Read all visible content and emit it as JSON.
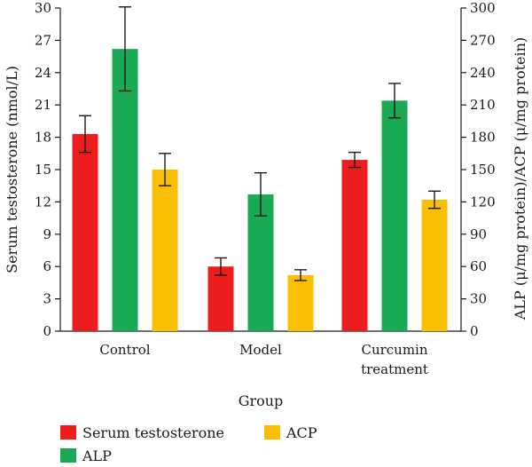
{
  "chart_data": {
    "type": "bar",
    "xlabel": "Group",
    "ylabel_left": "Serum testosterone (nmol/L)",
    "ylabel_right": "ALP (μ/mg protein)/ACP (μ/mg protein)",
    "categories": [
      [
        "Control"
      ],
      [
        "Model"
      ],
      [
        "Curcumin",
        "treatment"
      ]
    ],
    "y_left": {
      "min": 0,
      "max": 30,
      "ticks": [
        "0",
        "3",
        "6",
        "9",
        "12",
        "15",
        "18",
        "21",
        "24",
        "27",
        "30"
      ]
    },
    "y_right": {
      "min": 0,
      "max": 300,
      "ticks": [
        "0",
        "30",
        "60",
        "90",
        "120",
        "150",
        "180",
        "210",
        "240",
        "270",
        "300"
      ]
    },
    "series": [
      {
        "name": "Serum testosterone",
        "axis": "left",
        "color": "#ee1c1c",
        "values": [
          18.3,
          6.0,
          15.9
        ],
        "errors": [
          1.7,
          0.8,
          0.7
        ]
      },
      {
        "name": "ALP",
        "axis": "right",
        "color": "#1aaa55",
        "values": [
          262,
          127,
          214
        ],
        "errors": [
          39,
          20,
          16
        ]
      },
      {
        "name": "ACP",
        "axis": "right",
        "color": "#f9bf00",
        "values": [
          150,
          52,
          122
        ],
        "errors": [
          15,
          5,
          8
        ]
      }
    ],
    "legend": {
      "placement": "bottom-left",
      "rows": [
        [
          "Serum testosterone",
          "ACP"
        ],
        [
          "ALP"
        ]
      ]
    },
    "grid": false
  }
}
